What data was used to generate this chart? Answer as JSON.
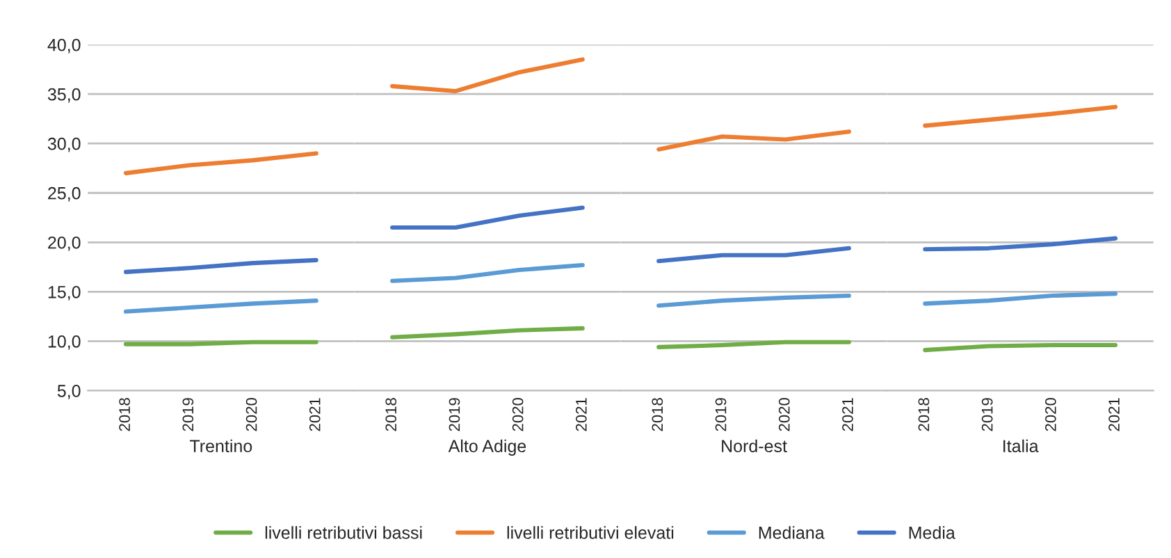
{
  "chart_data": [
    {
      "type": "line",
      "xlabel": "Trentino",
      "categories": [
        "2018",
        "2019",
        "2020",
        "2021"
      ],
      "ylim": [
        5,
        40
      ],
      "yticks": [
        {
          "value": 5,
          "label": "5,0"
        },
        {
          "value": 10,
          "label": "10,0"
        },
        {
          "value": 15,
          "label": "15,0"
        },
        {
          "value": 20,
          "label": "20,0"
        },
        {
          "value": 25,
          "label": "25,0"
        },
        {
          "value": 30,
          "label": "30,0"
        },
        {
          "value": 35,
          "label": "35,0"
        },
        {
          "value": 40,
          "label": "40,0"
        }
      ],
      "grid": "y",
      "legend": "bottom",
      "series": [
        {
          "name": "livelli retributivi bassi",
          "color": "#70ad47",
          "values": [
            9.7,
            9.7,
            9.9,
            9.9
          ]
        },
        {
          "name": "livelli retributivi elevati",
          "color": "#ed7d31",
          "values": [
            27.0,
            27.8,
            28.3,
            29.0
          ]
        },
        {
          "name": "Mediana",
          "color": "#5b9bd5",
          "values": [
            13.0,
            13.4,
            13.8,
            14.1
          ]
        },
        {
          "name": "Media",
          "color": "#4472c4",
          "values": [
            17.0,
            17.4,
            17.9,
            18.2
          ]
        }
      ]
    },
    {
      "type": "line",
      "xlabel": "Alto Adige",
      "categories": [
        "2018",
        "2019",
        "2020",
        "2021"
      ],
      "ylim": [
        5,
        40
      ],
      "tick_labels": "x",
      "grid": "y",
      "series": [
        {
          "color": "#70ad47",
          "values": [
            10.4,
            10.7,
            11.1,
            11.3
          ]
        },
        {
          "color": "#ed7d31",
          "values": [
            35.8,
            35.3,
            37.2,
            38.5
          ]
        },
        {
          "color": "#5b9bd5",
          "values": [
            16.1,
            16.4,
            17.2,
            17.7
          ]
        },
        {
          "color": "#4472c4",
          "values": [
            21.5,
            21.5,
            22.7,
            23.5
          ]
        }
      ]
    },
    {
      "type": "line",
      "xlabel": "Nord-est",
      "categories": [
        "2018",
        "2019",
        "2020",
        "2021"
      ],
      "ylim": [
        5,
        40
      ],
      "tick_labels": "x",
      "grid": "y",
      "series": [
        {
          "color": "#70ad47",
          "values": [
            9.4,
            9.6,
            9.9,
            9.9
          ]
        },
        {
          "color": "#ed7d31",
          "values": [
            29.4,
            30.7,
            30.4,
            31.2
          ]
        },
        {
          "color": "#5b9bd5",
          "values": [
            13.6,
            14.1,
            14.4,
            14.6
          ]
        },
        {
          "color": "#4472c4",
          "values": [
            18.1,
            18.7,
            18.7,
            19.4
          ]
        }
      ]
    },
    {
      "type": "line",
      "xlabel": "Italia",
      "categories": [
        "2018",
        "2019",
        "2020",
        "2021"
      ],
      "ylim": [
        5,
        40
      ],
      "tick_labels": "x",
      "grid": "y",
      "series": [
        {
          "color": "#70ad47",
          "values": [
            9.1,
            9.5,
            9.6,
            9.6
          ]
        },
        {
          "color": "#ed7d31",
          "values": [
            31.8,
            32.4,
            33.0,
            33.7
          ]
        },
        {
          "color": "#5b9bd5",
          "values": [
            13.8,
            14.1,
            14.6,
            14.8
          ]
        },
        {
          "color": "#4472c4",
          "values": [
            19.3,
            19.4,
            19.8,
            20.4
          ]
        }
      ]
    }
  ]
}
